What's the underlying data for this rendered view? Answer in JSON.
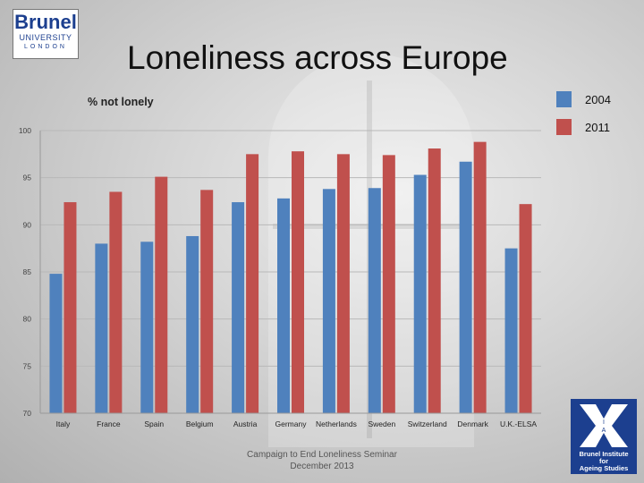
{
  "header": {
    "logo_line1": "Brunel",
    "logo_line2": "UNIVERSITY",
    "logo_line3": "LONDON",
    "title": "Loneliness across Europe"
  },
  "footer": {
    "line1": "Campaign to End Loneliness Seminar",
    "line2": "December 2013"
  },
  "bias_logo": {
    "letters": [
      "B",
      "I",
      "A",
      "S"
    ],
    "caption_lines": [
      "Brunel Institute",
      "for",
      "Ageing Studies"
    ]
  },
  "chart_data": {
    "type": "bar",
    "title": "% not lonely",
    "xlabel": "",
    "ylabel": "",
    "ylim": [
      70,
      100
    ],
    "yticks": [
      70,
      75,
      80,
      85,
      90,
      95,
      100
    ],
    "grid": true,
    "legend_position": "top-right",
    "categories": [
      "Italy",
      "France",
      "Spain",
      "Belgium",
      "Austria",
      "Germany",
      "Netherlands",
      "Sweden",
      "Switzerland",
      "Denmark",
      "U.K.-ELSA"
    ],
    "series": [
      {
        "name": "2004",
        "color": "#4f81bd",
        "values": [
          84.8,
          88.0,
          88.2,
          88.8,
          92.4,
          92.8,
          93.8,
          93.9,
          95.3,
          96.7,
          87.5
        ]
      },
      {
        "name": "2011",
        "color": "#c0504d",
        "values": [
          92.4,
          93.5,
          95.1,
          93.7,
          97.5,
          97.8,
          97.5,
          97.4,
          98.1,
          98.8,
          92.2
        ]
      }
    ]
  }
}
